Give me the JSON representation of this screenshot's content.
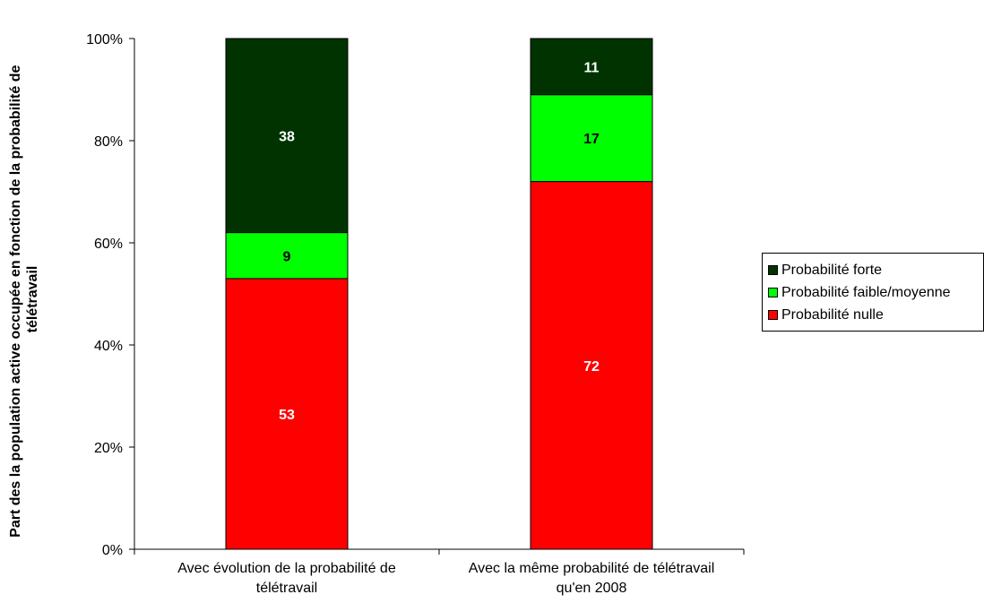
{
  "chart_data": {
    "type": "bar",
    "stacked": true,
    "categories": [
      [
        "Avec évolution de la probabilité de",
        "télétravail"
      ],
      [
        "Avec la même probabilité de télétravail",
        "qu'en 2008"
      ]
    ],
    "series": [
      {
        "name": "Probabilité nulle",
        "values": [
          53,
          72
        ],
        "color": "#ff0000",
        "label_color": "#ffffff"
      },
      {
        "name": "Probabilité faible/moyenne",
        "values": [
          9,
          17
        ],
        "color": "#00ff00",
        "label_color": "#000000"
      },
      {
        "name": "Probabilité forte",
        "values": [
          38,
          11
        ],
        "color": "#003300",
        "label_color": "#ffffff"
      }
    ],
    "ylabel": [
      "Part des la population active occupée en fonction de la probabilité de",
      "télétravail"
    ],
    "yticks": [
      "0%",
      "20%",
      "40%",
      "60%",
      "80%",
      "100%"
    ],
    "ylim": [
      0,
      100
    ],
    "legend_order": [
      "Probabilité forte",
      "Probabilité faible/moyenne",
      "Probabilité nulle"
    ],
    "legend_position": "right",
    "grid": false
  }
}
